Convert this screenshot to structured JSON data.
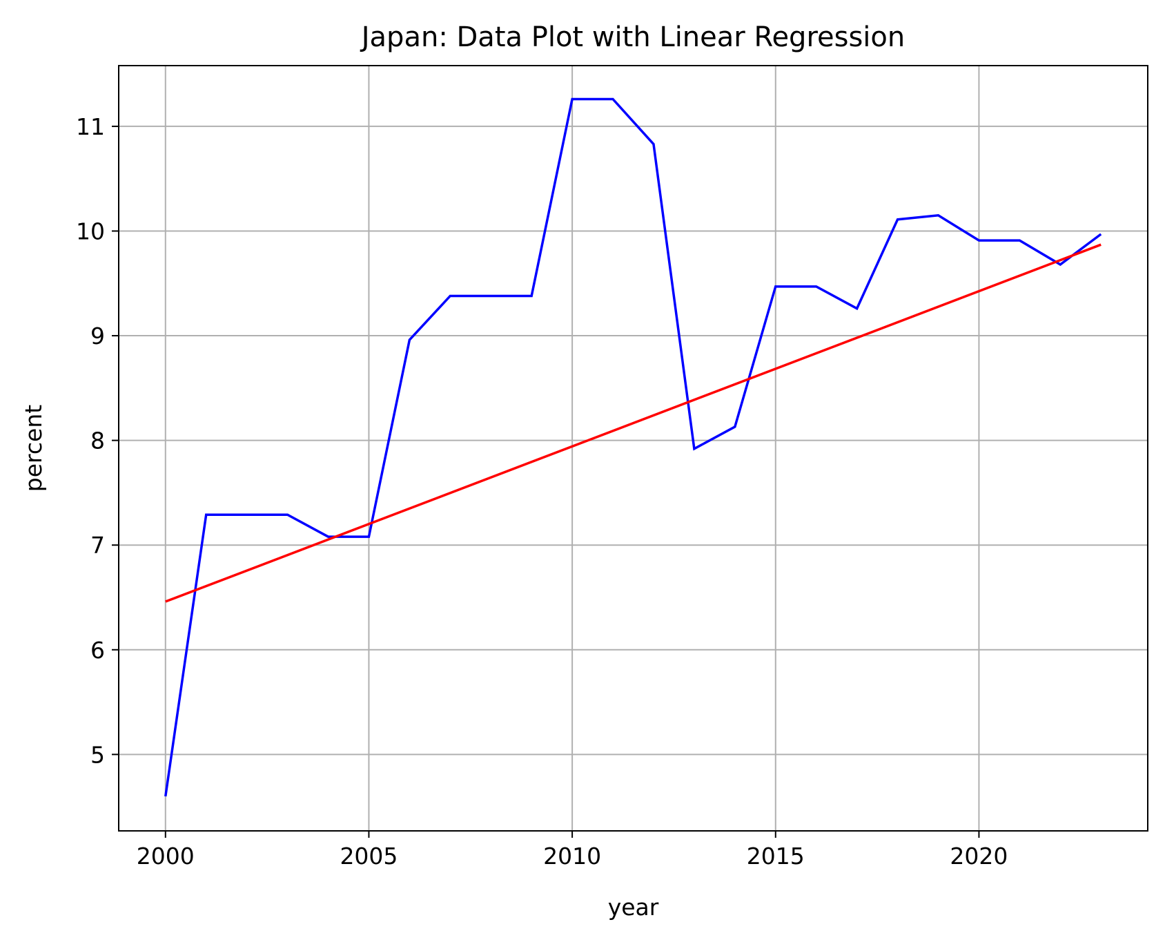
{
  "chart_data": {
    "type": "line",
    "title": "Japan: Data Plot with Linear Regression",
    "xlabel": "year",
    "ylabel": "percent",
    "xlim": [
      1998.85,
      2024.15
    ],
    "ylim": [
      4.27,
      11.58
    ],
    "xticks": [
      2000,
      2005,
      2010,
      2015,
      2020
    ],
    "yticks": [
      5,
      6,
      7,
      8,
      9,
      10,
      11
    ],
    "grid": true,
    "legend": null,
    "x": [
      2000,
      2001,
      2002,
      2003,
      2004,
      2005,
      2006,
      2007,
      2008,
      2009,
      2010,
      2011,
      2012,
      2013,
      2014,
      2015,
      2016,
      2017,
      2018,
      2019,
      2020,
      2021,
      2022,
      2023
    ],
    "series": [
      {
        "color": "#0000ff",
        "values": [
          4.6,
          7.29,
          7.29,
          7.29,
          7.08,
          7.08,
          8.96,
          9.38,
          9.38,
          9.38,
          11.26,
          11.26,
          10.83,
          7.92,
          8.13,
          9.47,
          9.47,
          9.26,
          10.11,
          10.15,
          9.91,
          9.91,
          9.68,
          9.97
        ]
      },
      {
        "color": "#ff0000",
        "role": "linear regression",
        "x": [
          2000,
          2023
        ],
        "values": [
          6.46,
          9.87
        ]
      }
    ]
  }
}
